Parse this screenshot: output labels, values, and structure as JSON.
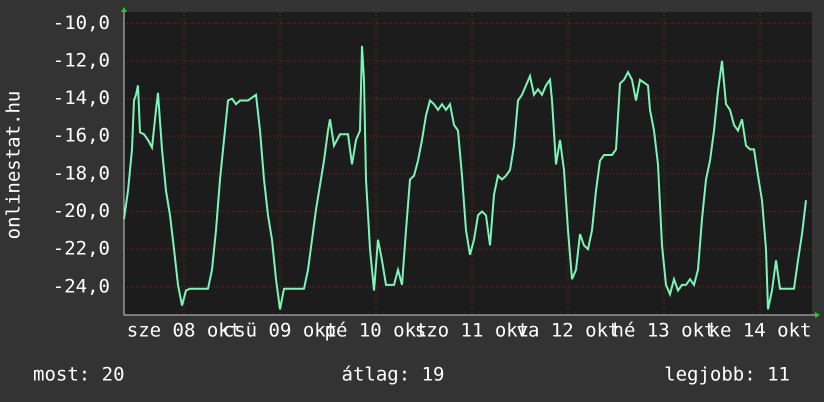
{
  "chart_data": {
    "type": "line",
    "y_label": "onlinestat.hu",
    "x": [
      0,
      1,
      2,
      2.5,
      3,
      3.5,
      4,
      5,
      6,
      7,
      8,
      8.5,
      9.5,
      10.5,
      11.5,
      12.5,
      13.5,
      14.5,
      15.5,
      16.5,
      21,
      22,
      23,
      24,
      25,
      26,
      27,
      28,
      29,
      31,
      33,
      34,
      35,
      36,
      37,
      38,
      39,
      40,
      41.5,
      45,
      46,
      47,
      48,
      49,
      50,
      51,
      51.5,
      52.5,
      54,
      56,
      57,
      58,
      59,
      59.5,
      60,
      60.5,
      61.5,
      62.5,
      63.5,
      64.5,
      65.5,
      67.5,
      68.5,
      69.5,
      70.5,
      71.5,
      72.5,
      73.5,
      74.5,
      75.5,
      76.5,
      77.5,
      78.5,
      79.5,
      80.5,
      81.5,
      82.5,
      83.5,
      84.5,
      85.5,
      86.5,
      87.5,
      88.5,
      89.5,
      90.5,
      91.5,
      92.5,
      93.5,
      94.5,
      95.5,
      96.5,
      97.5,
      98.5,
      99.5,
      100.5,
      101.5,
      102.5,
      103.5,
      104.5,
      105.5,
      106.5,
      107,
      108,
      109,
      110,
      111,
      112,
      113,
      114,
      115,
      116,
      117,
      118,
      119,
      120,
      122,
      123,
      124,
      125,
      126,
      127,
      128,
      129,
      131,
      131.5,
      132.5,
      133.5,
      134.5,
      135.5,
      136.5,
      137.5,
      138.5,
      139.5,
      140.5,
      141.5,
      142.5,
      143.5,
      144.5,
      145.5,
      146.5,
      147.5,
      148.5,
      149,
      149.5,
      150.5,
      151.5,
      152.5,
      153.5,
      154.5,
      155.5,
      156.5,
      157.5,
      158.5,
      159.5,
      160.5,
      161,
      162,
      163,
      164,
      167.5,
      168.5,
      169.5,
      170.5
    ],
    "series": [
      {
        "color": "#7df5b8",
        "values": [
          -20.4,
          -18.9,
          -16.7,
          -14.1,
          -13.8,
          -13.3,
          -15.8,
          -15.9,
          -16.2,
          -16.6,
          -14.6,
          -13.7,
          -16.7,
          -18.9,
          -20.2,
          -22.0,
          -23.9,
          -25.0,
          -24.2,
          -24.1,
          -24.1,
          -23.1,
          -21.0,
          -18.3,
          -16.2,
          -14.1,
          -14.0,
          -14.3,
          -14.1,
          -14.1,
          -13.8,
          -15.7,
          -18.3,
          -20.2,
          -21.5,
          -23.6,
          -25.2,
          -24.1,
          -24.1,
          -24.1,
          -23.1,
          -21.5,
          -19.9,
          -18.6,
          -17.3,
          -15.7,
          -15.1,
          -16.5,
          -15.9,
          -15.9,
          -17.5,
          -16.2,
          -15.7,
          -11.2,
          -13.0,
          -18.3,
          -22.0,
          -24.2,
          -21.5,
          -22.6,
          -23.9,
          -23.9,
          -23.1,
          -23.9,
          -21.0,
          -18.3,
          -18.1,
          -17.3,
          -16.2,
          -14.9,
          -14.1,
          -14.3,
          -14.6,
          -14.3,
          -14.6,
          -14.3,
          -15.4,
          -15.7,
          -18.1,
          -21.0,
          -22.3,
          -21.5,
          -20.2,
          -20.0,
          -20.2,
          -21.8,
          -19.1,
          -18.1,
          -18.3,
          -18.1,
          -17.8,
          -16.5,
          -14.1,
          -13.8,
          -13.3,
          -12.8,
          -13.8,
          -13.5,
          -13.8,
          -13.3,
          -13.0,
          -14.1,
          -17.5,
          -16.2,
          -17.8,
          -21.0,
          -23.6,
          -23.1,
          -21.2,
          -21.8,
          -22.0,
          -21.0,
          -18.9,
          -17.3,
          -17.0,
          -17.0,
          -16.7,
          -13.2,
          -13.0,
          -12.6,
          -13.0,
          -14.1,
          -13.0,
          -13.3,
          -14.6,
          -15.7,
          -17.5,
          -21.8,
          -23.9,
          -24.4,
          -23.6,
          -24.2,
          -23.9,
          -23.9,
          -23.6,
          -23.9,
          -23.1,
          -20.4,
          -18.3,
          -17.3,
          -15.7,
          -13.6,
          -12.8,
          -12.0,
          -14.3,
          -14.6,
          -15.4,
          -15.7,
          -15.1,
          -16.5,
          -16.7,
          -16.7,
          -18.1,
          -19.4,
          -22.0,
          -25.2,
          -24.2,
          -22.6,
          -24.1,
          -24.1,
          -22.6,
          -21.2,
          -19.4
        ]
      }
    ],
    "xlim": [
      0,
      172
    ],
    "xticks": [
      {
        "value": 15,
        "label": "sze 08 okt"
      },
      {
        "value": 39,
        "label": "csü 09 okt"
      },
      {
        "value": 63,
        "label": "pé 10 okt"
      },
      {
        "value": 87,
        "label": "szo 11 okt"
      },
      {
        "value": 111,
        "label": "va 12 okt"
      },
      {
        "value": 135,
        "label": "hé 13 okt"
      },
      {
        "value": 159,
        "label": "ke 14 okt"
      }
    ],
    "ylim": [
      -25.5,
      -9.4
    ],
    "yticks": [
      {
        "value": -10,
        "label": "-10,0"
      },
      {
        "value": -12,
        "label": "-12,0"
      },
      {
        "value": -14,
        "label": "-14,0"
      },
      {
        "value": -16,
        "label": "-16,0"
      },
      {
        "value": -18,
        "label": "-18,0"
      },
      {
        "value": -20,
        "label": "-20,0"
      },
      {
        "value": -22,
        "label": "-22,0"
      },
      {
        "value": -24,
        "label": "-24,0"
      }
    ],
    "grid": true,
    "footer": [
      "most: 20",
      "átlag: 19",
      "legjobb: 11"
    ]
  }
}
